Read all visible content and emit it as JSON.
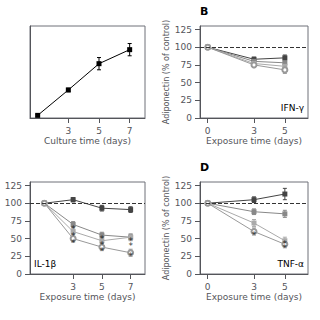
{
  "chart_data": [
    {
      "type": "line",
      "xlabel": "Culture time (days)",
      "x": [
        1,
        3,
        5,
        7
      ],
      "series": [
        {
          "values": [
            3,
            32,
            62,
            78
          ],
          "yerr": [
            1,
            2,
            7,
            7
          ],
          "color": "black",
          "marker": "square"
        }
      ],
      "xlim": [
        0.5,
        8
      ],
      "ylim": [
        0,
        105
      ],
      "xticks": [
        3,
        5,
        7
      ],
      "yticks": [],
      "tick_labels": "x",
      "grid": false
    },
    {
      "type": "line",
      "title": "B",
      "xlabel": "Exposure time (days)",
      "ylabel": "Adiponectin (% of control)",
      "x": [
        0,
        3,
        5
      ],
      "series": [
        {
          "values": [
            100,
            83,
            85
          ],
          "yerr": [
            0,
            3,
            4
          ],
          "color": "#444444",
          "marker": "square"
        },
        {
          "values": [
            100,
            80,
            78
          ],
          "yerr": [
            0,
            3,
            4
          ],
          "color": "#888888",
          "marker": "square"
        },
        {
          "values": [
            100,
            77,
            73
          ],
          "yerr": [
            0,
            3,
            4
          ],
          "color": "#aaaaaa",
          "marker": "square"
        },
        {
          "values": [
            100,
            75,
            68
          ],
          "yerr": [
            0,
            3,
            5
          ],
          "color": "#999999",
          "marker": "open_circle"
        }
      ],
      "reference_lines": [
        {
          "y": 100,
          "line_style": "dashed"
        }
      ],
      "annotations": [
        {
          "text": "IFN-γ"
        }
      ],
      "xlim": [
        -0.5,
        6.5
      ],
      "ylim": [
        0,
        130
      ],
      "xticks": [
        0,
        3,
        5
      ],
      "yticks": [
        0,
        25,
        50,
        75,
        100,
        125
      ],
      "grid": false
    },
    {
      "type": "line",
      "xlabel": "Exposure time (days)",
      "x": [
        1,
        3,
        5,
        7
      ],
      "series": [
        {
          "values": [
            100,
            105,
            93,
            91
          ],
          "yerr": [
            0,
            3,
            4,
            4
          ],
          "color": "#444444",
          "marker": "square"
        },
        {
          "values": [
            100,
            70,
            55,
            52
          ],
          "yerr": [
            0,
            4,
            4,
            4
          ],
          "color": "#888888",
          "marker": "square"
        },
        {
          "values": [
            100,
            60,
            47,
            52
          ],
          "yerr": [
            0,
            4,
            4,
            5
          ],
          "color": "#aaaaaa",
          "marker": "square"
        },
        {
          "values": [
            100,
            50,
            38,
            30
          ],
          "yerr": [
            0,
            5,
            5,
            5
          ],
          "color": "#999999",
          "marker": "open_circle"
        }
      ],
      "reference_lines": [
        {
          "y": 100,
          "line_style": "dashed"
        }
      ],
      "annotations": [
        {
          "text": "IL-1β"
        },
        {
          "text": "*",
          "x": 3,
          "y": 63
        },
        {
          "text": "*",
          "x": 3,
          "y": 54
        },
        {
          "text": "*",
          "x": 3,
          "y": 44
        },
        {
          "text": "*",
          "x": 5,
          "y": 50
        },
        {
          "text": "*",
          "x": 5,
          "y": 41
        },
        {
          "text": "*",
          "x": 5,
          "y": 32
        },
        {
          "text": "*",
          "x": 7,
          "y": 47
        },
        {
          "text": "*",
          "x": 7,
          "y": 40
        },
        {
          "text": "*",
          "x": 7,
          "y": 25
        }
      ],
      "xlim": [
        0,
        8
      ],
      "ylim": [
        0,
        130
      ],
      "xticks": [
        3,
        5,
        7
      ],
      "yticks": [
        0,
        25,
        50,
        75,
        100,
        125
      ],
      "grid": false
    },
    {
      "type": "line",
      "title": "D",
      "xlabel": "Exposure time (days)",
      "ylabel": "Adiponectin (% of control)",
      "x": [
        0,
        3,
        5
      ],
      "series": [
        {
          "values": [
            100,
            105,
            113
          ],
          "yerr": [
            0,
            4,
            8
          ],
          "color": "#444444",
          "marker": "square"
        },
        {
          "values": [
            100,
            88,
            85
          ],
          "yerr": [
            0,
            4,
            5
          ],
          "color": "#888888",
          "marker": "square"
        },
        {
          "values": [
            100,
            72,
            47
          ],
          "yerr": [
            0,
            5,
            5
          ],
          "color": "#aaaaaa",
          "marker": "square"
        },
        {
          "values": [
            100,
            60,
            42
          ],
          "yerr": [
            0,
            5,
            5
          ],
          "color": "#999999",
          "marker": "open_circle"
        }
      ],
      "reference_lines": [
        {
          "y": 100,
          "line_style": "dashed"
        }
      ],
      "annotations": [
        {
          "text": "TNF-α"
        },
        {
          "text": "*",
          "x": 3,
          "y": 55
        },
        {
          "text": "*",
          "x": 5,
          "y": 42
        },
        {
          "text": "*",
          "x": 5,
          "y": 37
        }
      ],
      "xlim": [
        -0.5,
        6.5
      ],
      "ylim": [
        0,
        130
      ],
      "xticks": [
        0,
        3,
        5
      ],
      "yticks": [
        0,
        25,
        50,
        75,
        100,
        125
      ],
      "grid": false
    }
  ]
}
